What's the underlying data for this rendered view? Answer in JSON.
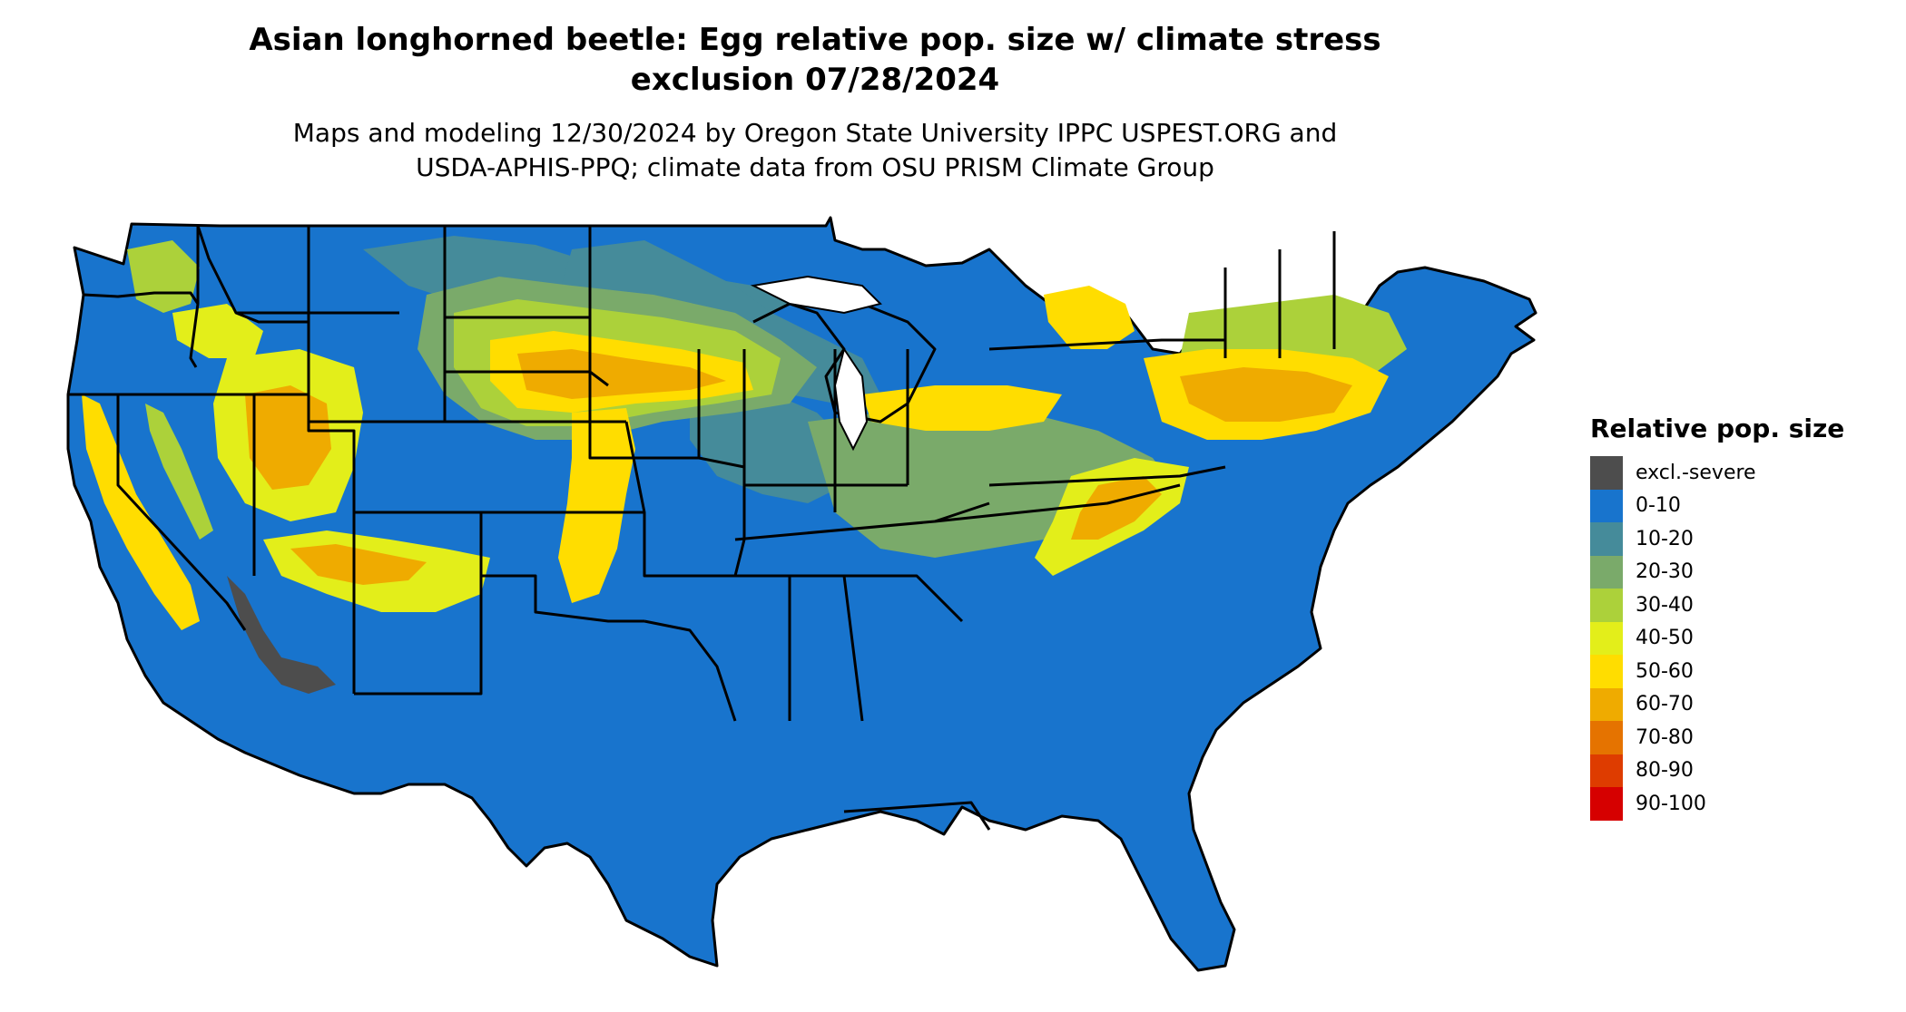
{
  "title": {
    "line1": "Asian longhorned beetle: Egg relative pop. size w/ climate stress",
    "line2": "exclusion 07/28/2024"
  },
  "subtitle": {
    "line1": "Maps and modeling 12/30/2024 by Oregon State University IPPC USPEST.ORG and",
    "line2": "USDA-APHIS-PPQ; climate data from OSU PRISM Climate Group"
  },
  "legend": {
    "title": "Relative pop. size",
    "items": [
      {
        "label": "excl.-severe",
        "color": "#4d4d4d"
      },
      {
        "label": "0-10",
        "color": "#1874cd"
      },
      {
        "label": "10-20",
        "color": "#458b9a"
      },
      {
        "label": "20-30",
        "color": "#7aaa6a"
      },
      {
        "label": "30-40",
        "color": "#acd13a"
      },
      {
        "label": "40-50",
        "color": "#e3ee1a"
      },
      {
        "label": "50-60",
        "color": "#ffdd00"
      },
      {
        "label": "60-70",
        "color": "#efab00"
      },
      {
        "label": "70-80",
        "color": "#e57300"
      },
      {
        "label": "80-90",
        "color": "#de3c00"
      },
      {
        "label": "90-100",
        "color": "#d60000"
      }
    ]
  }
}
